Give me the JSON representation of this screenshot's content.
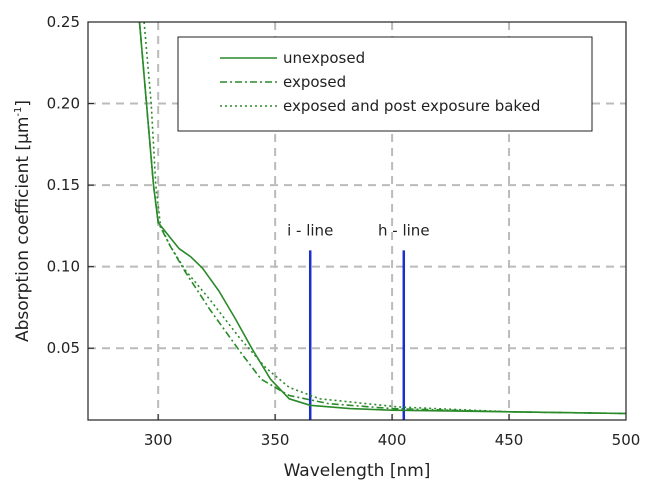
{
  "chart_data": {
    "type": "line",
    "title": "",
    "xlabel": "Wavelength [nm]",
    "ylabel": "Absorption coefficient [µm",
    "ylabel_sup": "-1",
    "ylabel_end": "]",
    "xlim": [
      270,
      500
    ],
    "ylim": [
      0.006,
      0.25
    ],
    "xticks": [
      300,
      350,
      400,
      450,
      500
    ],
    "xtick_labels": [
      "300",
      "350",
      "400",
      "450",
      "500"
    ],
    "yticks": [
      0.05,
      0.1,
      0.15,
      0.2,
      0.25
    ],
    "ytick_labels": [
      "0.05",
      "0.10",
      "0.15",
      "0.20",
      "0.25"
    ],
    "grid": true,
    "legend_position": "top-right",
    "series": [
      {
        "name": "unexposed",
        "style": "solid",
        "color": "#2a8a2a",
        "x": [
          292,
          295,
          298,
          300,
          305,
          309,
          314,
          319,
          326,
          333,
          340,
          348,
          356,
          365,
          382,
          400,
          450,
          500
        ],
        "y": [
          0.25,
          0.2,
          0.15,
          0.127,
          0.118,
          0.111,
          0.106,
          0.099,
          0.085,
          0.068,
          0.05,
          0.031,
          0.019,
          0.015,
          0.013,
          0.012,
          0.011,
          0.01
        ]
      },
      {
        "name": "exposed",
        "style": "dashdot",
        "color": "#2a8a2a",
        "x": [
          292,
          295,
          298,
          300,
          305,
          311.5,
          322,
          335,
          344,
          356,
          373,
          400,
          450,
          500
        ],
        "y": [
          0.25,
          0.2,
          0.15,
          0.127,
          0.113,
          0.097,
          0.074,
          0.048,
          0.031,
          0.021,
          0.016,
          0.013,
          0.011,
          0.01
        ]
      },
      {
        "name": "exposed and post exposure baked",
        "style": "dotted",
        "color": "#2a8a2a",
        "x": [
          294,
          297,
          299,
          301,
          305,
          311.5,
          322,
          335,
          346,
          356,
          369,
          403,
          450,
          500
        ],
        "y": [
          0.25,
          0.2,
          0.15,
          0.125,
          0.113,
          0.098,
          0.08,
          0.056,
          0.038,
          0.026,
          0.019,
          0.014,
          0.011,
          0.01
        ]
      }
    ],
    "annotations": [
      {
        "label": "i - line",
        "x": 365,
        "y_top": 0.11,
        "color": "#1a2fcc"
      },
      {
        "label": "h - line",
        "x": 405,
        "y_top": 0.11,
        "color": "#1a2fcc"
      }
    ]
  }
}
